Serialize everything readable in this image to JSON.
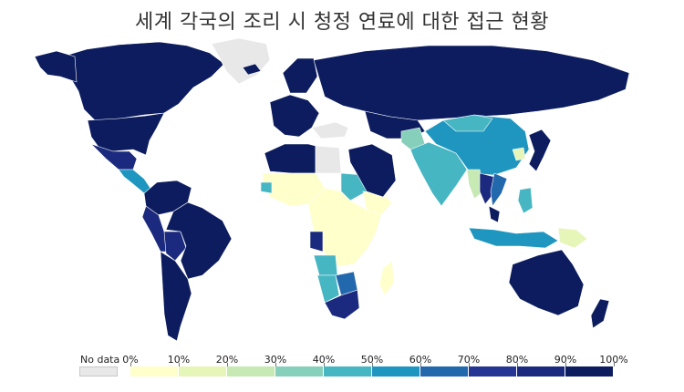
{
  "title": "세계 각국의 조리 시 청정 연료에 대한 접근 현황",
  "legend": {
    "no_data_label": "No data",
    "no_data_color": "#e8e8e8",
    "ticks": [
      "0%",
      "10%",
      "20%",
      "30%",
      "40%",
      "50%",
      "60%",
      "70%",
      "80%",
      "90%",
      "100%"
    ],
    "colors": [
      "#ffffcc",
      "#e6f5b8",
      "#c7e9b4",
      "#86cfbb",
      "#47b6c3",
      "#1f96c0",
      "#2268ad",
      "#253594",
      "#1b2a7e",
      "#0c1c5e"
    ]
  },
  "map": {
    "regions": [
      {
        "name": "Canada",
        "value": 100
      },
      {
        "name": "Alaska",
        "value": 100
      },
      {
        "name": "Greenland",
        "value": null
      },
      {
        "name": "United States",
        "value": 100
      },
      {
        "name": "Mexico",
        "value": 85
      },
      {
        "name": "Central America",
        "value": 55
      },
      {
        "name": "Colombia & Venezuela",
        "value": 95
      },
      {
        "name": "Peru",
        "value": 80
      },
      {
        "name": "Bolivia",
        "value": 80
      },
      {
        "name": "Brazil",
        "value": 95
      },
      {
        "name": "Argentina & Chile",
        "value": 100
      },
      {
        "name": "Western Europe",
        "value": 100
      },
      {
        "name": "Iceland",
        "value": 100
      },
      {
        "name": "Scandinavia",
        "value": 100
      },
      {
        "name": "Russia",
        "value": 100
      },
      {
        "name": "Ukraine",
        "value": null
      },
      {
        "name": "North Africa",
        "value": 100
      },
      {
        "name": "Libya",
        "value": null
      },
      {
        "name": "West Africa",
        "value": 5
      },
      {
        "name": "Senegal",
        "value": 45
      },
      {
        "name": "Sudan",
        "value": 45
      },
      {
        "name": "Ethiopia",
        "value": 5
      },
      {
        "name": "Central & East Africa",
        "value": 3
      },
      {
        "name": "Gabon",
        "value": 85
      },
      {
        "name": "Angola",
        "value": 45
      },
      {
        "name": "Namibia",
        "value": 45
      },
      {
        "name": "Botswana",
        "value": 65
      },
      {
        "name": "South Africa",
        "value": 85
      },
      {
        "name": "Madagascar",
        "value": 3
      },
      {
        "name": "Middle East",
        "value": 100
      },
      {
        "name": "Central Asia",
        "value": 100
      },
      {
        "name": "Afghanistan",
        "value": 35
      },
      {
        "name": "India & Pakistan",
        "value": 45
      },
      {
        "name": "China",
        "value": 55
      },
      {
        "name": "Mongolia",
        "value": 45
      },
      {
        "name": "North Korea",
        "value": 10
      },
      {
        "name": "Japan & Korea",
        "value": 100
      },
      {
        "name": "Myanmar",
        "value": 20
      },
      {
        "name": "Thailand",
        "value": 80
      },
      {
        "name": "Vietnam",
        "value": 60
      },
      {
        "name": "Indonesia",
        "value": 55
      },
      {
        "name": "Malaysia",
        "value": 95
      },
      {
        "name": "Philippines",
        "value": 45
      },
      {
        "name": "Papua New Guinea",
        "value": 10
      },
      {
        "name": "Australia",
        "value": 100
      },
      {
        "name": "New Zealand",
        "value": 100
      }
    ]
  }
}
